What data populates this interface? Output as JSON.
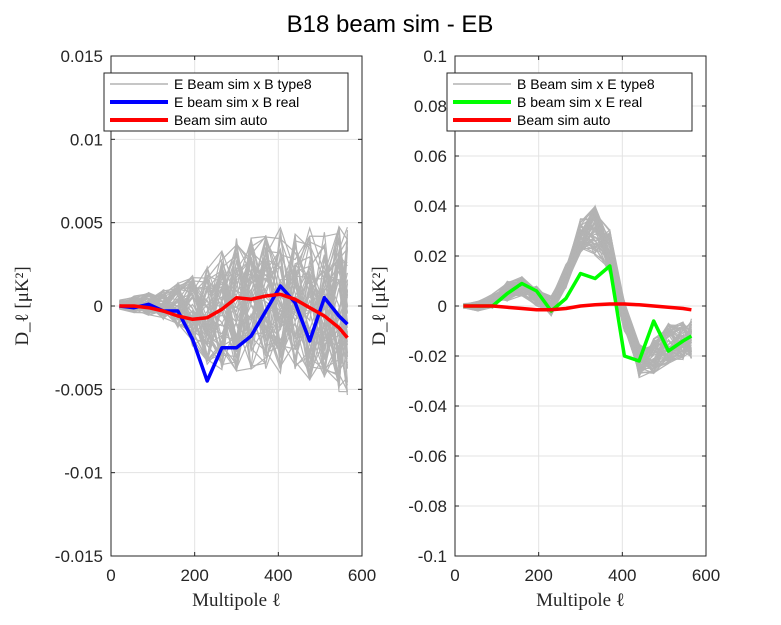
{
  "chart_data": {
    "title": "B18 beam sim - EB",
    "panels": [
      {
        "type": "line",
        "xlabel": "Multipole ℓ",
        "ylabel": "D_ℓ [μK²]",
        "xlim": [
          0,
          600
        ],
        "ylim": [
          -0.015,
          0.015
        ],
        "xticks": [
          0,
          200,
          400,
          600
        ],
        "xtick_labels": [
          "0",
          "200",
          "400",
          "600"
        ],
        "yticks": [
          -0.015,
          -0.01,
          -0.005,
          0,
          0.005,
          0.01,
          0.015
        ],
        "ytick_labels": [
          "-0.015",
          "-0.01",
          "-0.005",
          "0",
          "0.005",
          "0.01",
          "0.015"
        ],
        "grid": true,
        "legend_position": "top",
        "x": [
          20,
          55,
          90,
          125,
          160,
          195,
          230,
          265,
          300,
          335,
          370,
          405,
          440,
          475,
          510,
          545,
          565
        ],
        "envelope": {
          "name": "E Beam sim x B type8",
          "color": "#b3b3b3",
          "spread": [
            0.0003,
            0.0005,
            0.0007,
            0.0009,
            0.0014,
            0.0022,
            0.003,
            0.0036,
            0.004,
            0.004,
            0.0042,
            0.0044,
            0.0045,
            0.0046,
            0.0048,
            0.005,
            0.0052
          ],
          "center": [
            0.0001,
            0.0001,
            0.0001,
            0.0001,
            0.0,
            -0.0003,
            -0.0005,
            -0.0003,
            0.0001,
            0.0002,
            0.0002,
            0.0003,
            0.0002,
            0.0001,
            -0.0001,
            -0.0002,
            -0.0003
          ]
        },
        "series": [
          {
            "name": "E beam sim x B real",
            "color": "#0000ff",
            "values": [
              0.0,
              -0.0001,
              0.0001,
              -0.0003,
              -0.0003,
              -0.002,
              -0.0045,
              -0.0025,
              -0.0025,
              -0.0018,
              -0.0003,
              0.0012,
              0.0002,
              -0.0021,
              0.0005,
              -0.0006,
              -0.0011
            ]
          },
          {
            "name": "Beam sim auto",
            "color": "#ff0000",
            "values": [
              0.0,
              0.0,
              -0.0001,
              -0.0003,
              -0.0006,
              -0.0008,
              -0.0007,
              -0.0002,
              0.0005,
              0.0004,
              0.0006,
              0.0007,
              0.0004,
              -0.0001,
              -0.0006,
              -0.0013,
              -0.0019
            ]
          }
        ]
      },
      {
        "type": "line",
        "xlabel": "Multipole ℓ",
        "ylabel": "D_ℓ [μK²]",
        "xlim": [
          0,
          600
        ],
        "ylim": [
          -0.1,
          0.1
        ],
        "xticks": [
          0,
          200,
          400,
          600
        ],
        "xtick_labels": [
          "0",
          "200",
          "400",
          "600"
        ],
        "yticks": [
          -0.1,
          -0.08,
          -0.06,
          -0.04,
          -0.02,
          0,
          0.02,
          0.04,
          0.06,
          0.08,
          0.1
        ],
        "ytick_labels": [
          "-0.1",
          "-0.08",
          "-0.06",
          "-0.04",
          "-0.02",
          "0",
          "0.02",
          "0.04",
          "0.06",
          "0.08",
          "0.1"
        ],
        "grid": true,
        "legend_position": "top",
        "x": [
          20,
          55,
          90,
          125,
          160,
          195,
          230,
          265,
          300,
          335,
          370,
          405,
          440,
          475,
          510,
          545,
          565
        ],
        "envelope": {
          "name": "B Beam sim x E type8",
          "color": "#b3b3b3",
          "spread": [
            0.001,
            0.002,
            0.003,
            0.004,
            0.004,
            0.004,
            0.004,
            0.005,
            0.007,
            0.01,
            0.009,
            0.006,
            0.007,
            0.007,
            0.008,
            0.008,
            0.008
          ],
          "center": [
            0.0,
            0.0,
            0.002,
            0.006,
            0.008,
            0.004,
            0.0,
            0.012,
            0.028,
            0.03,
            0.022,
            -0.004,
            -0.022,
            -0.02,
            -0.015,
            -0.014,
            -0.013
          ]
        },
        "series": [
          {
            "name": "B beam sim x E real",
            "color": "#00ff00",
            "values": [
              0.0,
              0.0,
              0.0,
              0.005,
              0.009,
              0.006,
              -0.002,
              0.003,
              0.013,
              0.011,
              0.016,
              -0.02,
              -0.022,
              -0.006,
              -0.018,
              -0.014,
              -0.012
            ]
          },
          {
            "name": "Beam sim auto",
            "color": "#ff0000",
            "values": [
              0.0,
              0.0,
              0.0,
              -0.0005,
              -0.001,
              -0.0015,
              -0.0015,
              -0.001,
              0.0,
              0.0005,
              0.0008,
              0.0008,
              0.0005,
              0.0,
              -0.0005,
              -0.001,
              -0.0015
            ]
          }
        ]
      }
    ]
  }
}
